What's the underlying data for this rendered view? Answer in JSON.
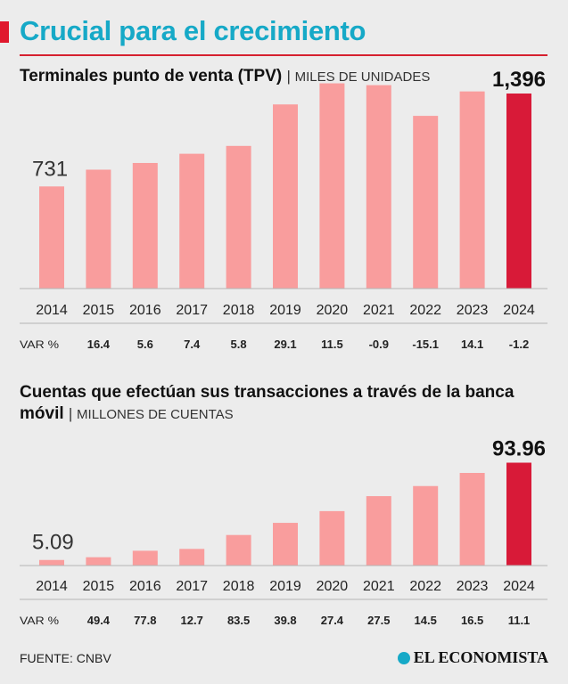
{
  "header": {
    "title": "Crucial para el crecimiento"
  },
  "colors": {
    "accent": "#e0182d",
    "title": "#16a9c7",
    "bar": "#f99d9d",
    "highlight": "#d81a38"
  },
  "chart_data": [
    {
      "type": "bar",
      "title": "Terminales punto de venta (TPV)",
      "unit": "MILES DE UNIDADES",
      "categories": [
        "2014",
        "2015",
        "2016",
        "2017",
        "2018",
        "2019",
        "2020",
        "2021",
        "2022",
        "2023",
        "2024"
      ],
      "values": [
        731,
        851,
        899,
        965,
        1021,
        1318,
        1469,
        1456,
        1236,
        1411,
        1396
      ],
      "labels": {
        "first": "731",
        "last": "1,396"
      },
      "var_label": "VAR %",
      "var": [
        "16.4",
        "5.6",
        "7.4",
        "5.8",
        "29.1",
        "11.5",
        "-0.9",
        "-15.1",
        "14.1",
        "-1.2"
      ],
      "ylim": [
        0,
        1600
      ]
    },
    {
      "type": "bar",
      "title": "Cuentas que efectúan sus transacciones a través de la banca móvil",
      "unit": "MILLONES DE CUENTAS",
      "categories": [
        "2014",
        "2015",
        "2016",
        "2017",
        "2018",
        "2019",
        "2020",
        "2021",
        "2022",
        "2023",
        "2024"
      ],
      "values": [
        5.09,
        7.6,
        13.5,
        15.2,
        27.9,
        39.0,
        49.7,
        63.4,
        72.6,
        84.6,
        93.96
      ],
      "labels": {
        "first": "5.09",
        "last": "93.96"
      },
      "var_label": "VAR %",
      "var": [
        "49.4",
        "77.8",
        "12.7",
        "83.5",
        "39.8",
        "27.4",
        "27.5",
        "14.5",
        "16.5",
        "11.1"
      ],
      "ylim": [
        0,
        100
      ]
    }
  ],
  "footer": {
    "source": "FUENTE: CNBV",
    "brand": "EL ECONOMISTA"
  }
}
